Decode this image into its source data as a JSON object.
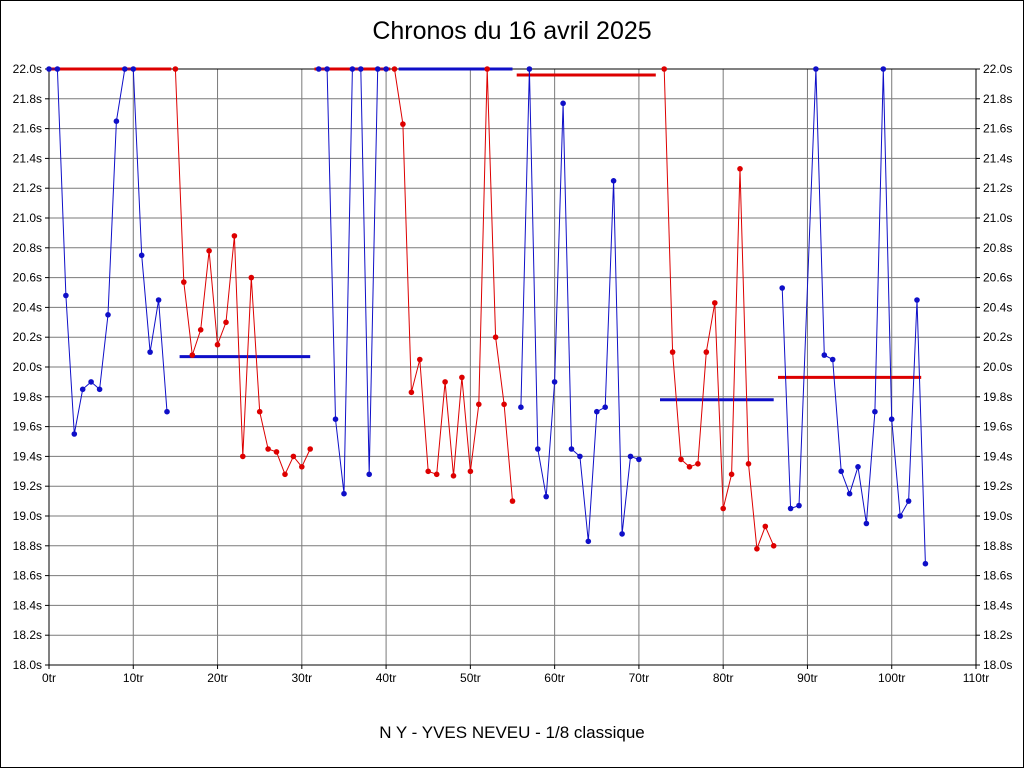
{
  "chart_data": {
    "type": "line",
    "title": "Chronos du 16 avril 2025",
    "footer": "N Y - YVES NEVEU - 1/8 classique",
    "x_unit": "tr",
    "y_unit": "s",
    "xlim": [
      0,
      110
    ],
    "ylim": [
      18.0,
      22.0
    ],
    "grid": true,
    "legend": "none",
    "colors": {
      "blue": "#0f0fc8",
      "red": "#dd0000",
      "grid": "#7a7a7a",
      "frame": "#000000"
    },
    "x_ticks": [
      0,
      10,
      20,
      30,
      40,
      50,
      60,
      70,
      80,
      90,
      100,
      110
    ],
    "x_tick_labels": [
      "0tr",
      "10tr",
      "20tr",
      "30tr",
      "40tr",
      "50tr",
      "60tr",
      "70tr",
      "80tr",
      "90tr",
      "100tr",
      "110tr"
    ],
    "y_ticks": [
      18.0,
      18.2,
      18.4,
      18.6,
      18.8,
      19.0,
      19.2,
      19.4,
      19.6,
      19.8,
      20.0,
      20.2,
      20.4,
      20.6,
      20.8,
      21.0,
      21.2,
      21.4,
      21.6,
      21.8,
      22.0
    ],
    "y_tick_labels": [
      "18.0s",
      "18.2s",
      "18.4s",
      "18.6s",
      "18.8s",
      "19.0s",
      "19.2s",
      "19.4s",
      "19.6s",
      "19.8s",
      "20.0s",
      "20.2s",
      "20.4s",
      "20.6s",
      "20.8s",
      "21.0s",
      "21.2s",
      "21.4s",
      "21.6s",
      "21.8s",
      "22.0s"
    ],
    "series": [
      {
        "name": "stint-1-blue",
        "color": "blue",
        "points": [
          [
            0,
            22.0
          ],
          [
            1,
            22.0
          ],
          [
            2,
            20.48
          ],
          [
            3,
            19.55
          ],
          [
            4,
            19.85
          ],
          [
            5,
            19.9
          ],
          [
            6,
            19.85
          ],
          [
            7,
            20.35
          ],
          [
            8,
            21.65
          ],
          [
            9,
            22.0
          ],
          [
            10,
            22.0
          ],
          [
            11,
            20.75
          ],
          [
            12,
            20.1
          ],
          [
            13,
            20.45
          ],
          [
            14,
            19.7
          ]
        ]
      },
      {
        "name": "stint-2-red",
        "color": "red",
        "points": [
          [
            15,
            22.0
          ],
          [
            16,
            20.57
          ],
          [
            17,
            20.08
          ],
          [
            18,
            20.25
          ],
          [
            19,
            20.78
          ],
          [
            20,
            20.15
          ],
          [
            21,
            20.3
          ],
          [
            22,
            20.88
          ],
          [
            23,
            19.4
          ],
          [
            24,
            20.6
          ],
          [
            25,
            19.7
          ],
          [
            26,
            19.45
          ],
          [
            27,
            19.43
          ],
          [
            28,
            19.28
          ],
          [
            29,
            19.4
          ],
          [
            30,
            19.33
          ],
          [
            31,
            19.45
          ]
        ]
      },
      {
        "name": "stint-3-blue",
        "color": "blue",
        "points": [
          [
            32,
            22.0
          ],
          [
            33,
            22.0
          ],
          [
            34,
            19.65
          ],
          [
            35,
            19.15
          ],
          [
            36,
            22.0
          ],
          [
            37,
            22.0
          ],
          [
            38,
            19.28
          ],
          [
            39,
            22.0
          ],
          [
            40,
            22.0
          ]
        ]
      },
      {
        "name": "stint-4-red",
        "color": "red",
        "points": [
          [
            41,
            22.0
          ],
          [
            42,
            21.63
          ],
          [
            43,
            19.83
          ],
          [
            44,
            20.05
          ],
          [
            45,
            19.3
          ],
          [
            46,
            19.28
          ],
          [
            47,
            19.9
          ],
          [
            48,
            19.27
          ],
          [
            49,
            19.93
          ],
          [
            50,
            19.3
          ],
          [
            51,
            19.75
          ],
          [
            52,
            22.0
          ],
          [
            53,
            20.2
          ],
          [
            54,
            19.75
          ],
          [
            55,
            19.1
          ]
        ]
      },
      {
        "name": "stint-5-blue",
        "color": "blue",
        "points": [
          [
            56,
            19.73
          ],
          [
            57,
            22.0
          ],
          [
            58,
            19.45
          ],
          [
            59,
            19.13
          ],
          [
            60,
            19.9
          ],
          [
            61,
            21.77
          ],
          [
            62,
            19.45
          ],
          [
            63,
            19.4
          ],
          [
            64,
            18.83
          ],
          [
            65,
            19.7
          ],
          [
            66,
            19.73
          ],
          [
            67,
            21.25
          ],
          [
            68,
            18.88
          ],
          [
            69,
            19.4
          ],
          [
            70,
            19.38
          ]
        ]
      },
      {
        "name": "stint-6-red",
        "color": "red",
        "points": [
          [
            73,
            22.0
          ],
          [
            74,
            20.1
          ],
          [
            75,
            19.38
          ],
          [
            76,
            19.33
          ],
          [
            77,
            19.35
          ],
          [
            78,
            20.1
          ],
          [
            79,
            20.43
          ],
          [
            80,
            19.05
          ],
          [
            81,
            19.28
          ],
          [
            82,
            21.33
          ],
          [
            83,
            19.35
          ],
          [
            84,
            18.78
          ],
          [
            85,
            18.93
          ],
          [
            86,
            18.8
          ]
        ]
      },
      {
        "name": "stint-7-blue",
        "color": "blue",
        "points": [
          [
            87,
            20.53
          ],
          [
            88,
            19.05
          ],
          [
            89,
            19.07
          ],
          [
            91,
            22.0
          ],
          [
            92,
            20.08
          ],
          [
            93,
            20.05
          ],
          [
            94,
            19.3
          ],
          [
            95,
            19.15
          ],
          [
            96,
            19.33
          ],
          [
            97,
            18.95
          ],
          [
            98,
            19.7
          ],
          [
            99,
            22.0
          ],
          [
            100,
            19.65
          ],
          [
            101,
            19.0
          ],
          [
            102,
            19.1
          ],
          [
            103,
            20.45
          ],
          [
            104,
            18.68
          ]
        ]
      }
    ],
    "average_lines": [
      {
        "color": "red",
        "y": 22.0,
        "x1": 0,
        "x2": 14.5
      },
      {
        "color": "blue",
        "y": 20.07,
        "x1": 15.5,
        "x2": 31
      },
      {
        "color": "red",
        "y": 22.0,
        "x1": 31.5,
        "x2": 40.5
      },
      {
        "color": "blue",
        "y": 22.0,
        "x1": 41.5,
        "x2": 55
      },
      {
        "color": "red",
        "y": 21.96,
        "x1": 55.5,
        "x2": 72
      },
      {
        "color": "blue",
        "y": 19.78,
        "x1": 72.5,
        "x2": 86
      },
      {
        "color": "red",
        "y": 19.93,
        "x1": 86.5,
        "x2": 103.5
      }
    ]
  }
}
